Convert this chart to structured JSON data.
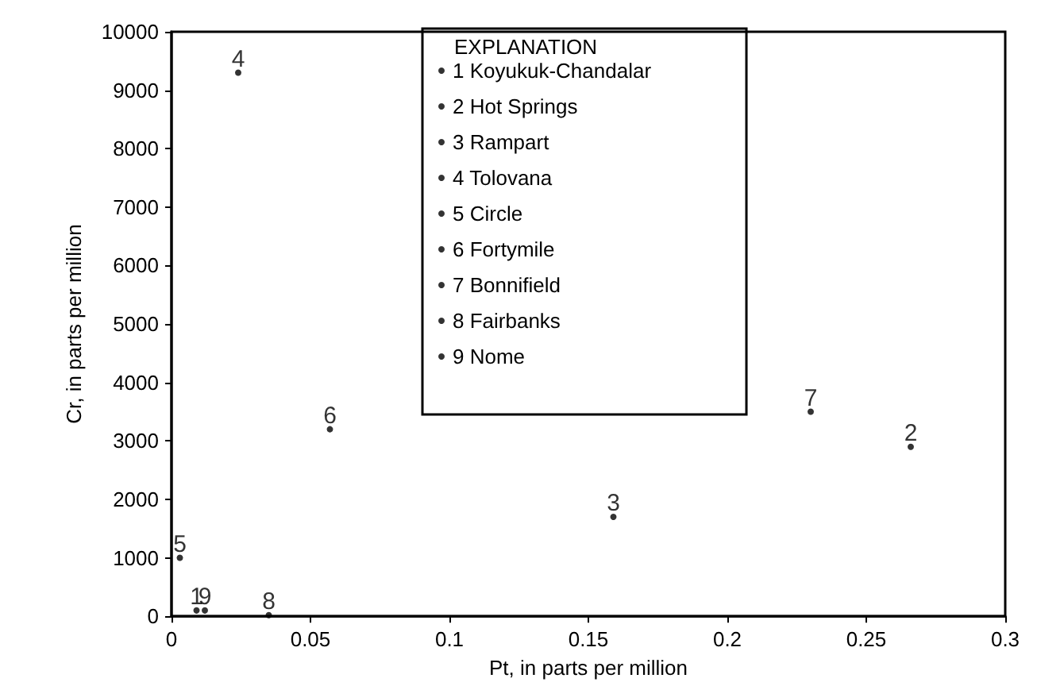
{
  "chart_data": {
    "type": "scatter",
    "xlabel": "Pt, in parts per million",
    "ylabel": "Cr, in parts per million",
    "legend_title": "EXPLANATION",
    "legend": "top",
    "marker": "circle",
    "grid": false,
    "annotations": [
      {
        "text": "1",
        "x": 0.009,
        "y": 100
      },
      {
        "text": "2",
        "x": 0.266,
        "y": 2900
      },
      {
        "text": "3",
        "x": 0.159,
        "y": 1700
      },
      {
        "text": "4",
        "x": 0.024,
        "y": 9300
      },
      {
        "text": "5",
        "x": 0.003,
        "y": 1000
      },
      {
        "text": "6",
        "x": 0.057,
        "y": 3200
      },
      {
        "text": "7",
        "x": 0.23,
        "y": 3500
      },
      {
        "text": "8",
        "x": 0.035,
        "y": 20
      },
      {
        "text": "9",
        "x": 0.012,
        "y": 100
      }
    ],
    "xlim": [
      0,
      0.3
    ],
    "xticks": [
      0,
      0.05,
      0.1,
      0.15,
      0.2,
      0.25,
      0.3
    ],
    "ylim": [
      0,
      10000
    ],
    "yticks": [
      0,
      1000,
      2000,
      3000,
      4000,
      5000,
      6000,
      7000,
      8000,
      9000,
      10000
    ],
    "series": [
      {
        "name": "1 Koyukuk-Chandalar",
        "color": "#000000",
        "x": [
          0.009
        ],
        "values": [
          100
        ]
      },
      {
        "name": "2 Hot Springs",
        "color": "#000000",
        "x": [
          0.266
        ],
        "values": [
          2900
        ]
      },
      {
        "name": "3 Rampart",
        "color": "#000000",
        "x": [
          0.159
        ],
        "values": [
          1700
        ]
      },
      {
        "name": "4 Tolovana",
        "color": "#000000",
        "x": [
          0.024
        ],
        "values": [
          9300
        ]
      },
      {
        "name": "5 Circle",
        "color": "#000000",
        "x": [
          0.003
        ],
        "values": [
          1000
        ]
      },
      {
        "name": "6 Fortymile",
        "color": "#000000",
        "x": [
          0.057
        ],
        "values": [
          3200
        ]
      },
      {
        "name": "7 Bonnifield",
        "color": "#000000",
        "x": [
          0.23
        ],
        "values": [
          3500
        ]
      },
      {
        "name": "8 Fairbanks",
        "color": "#000000",
        "x": [
          0.035
        ],
        "values": [
          20
        ]
      },
      {
        "name": "9 Nome",
        "color": "#000000",
        "x": [
          0.012
        ],
        "values": [
          100
        ]
      }
    ]
  }
}
